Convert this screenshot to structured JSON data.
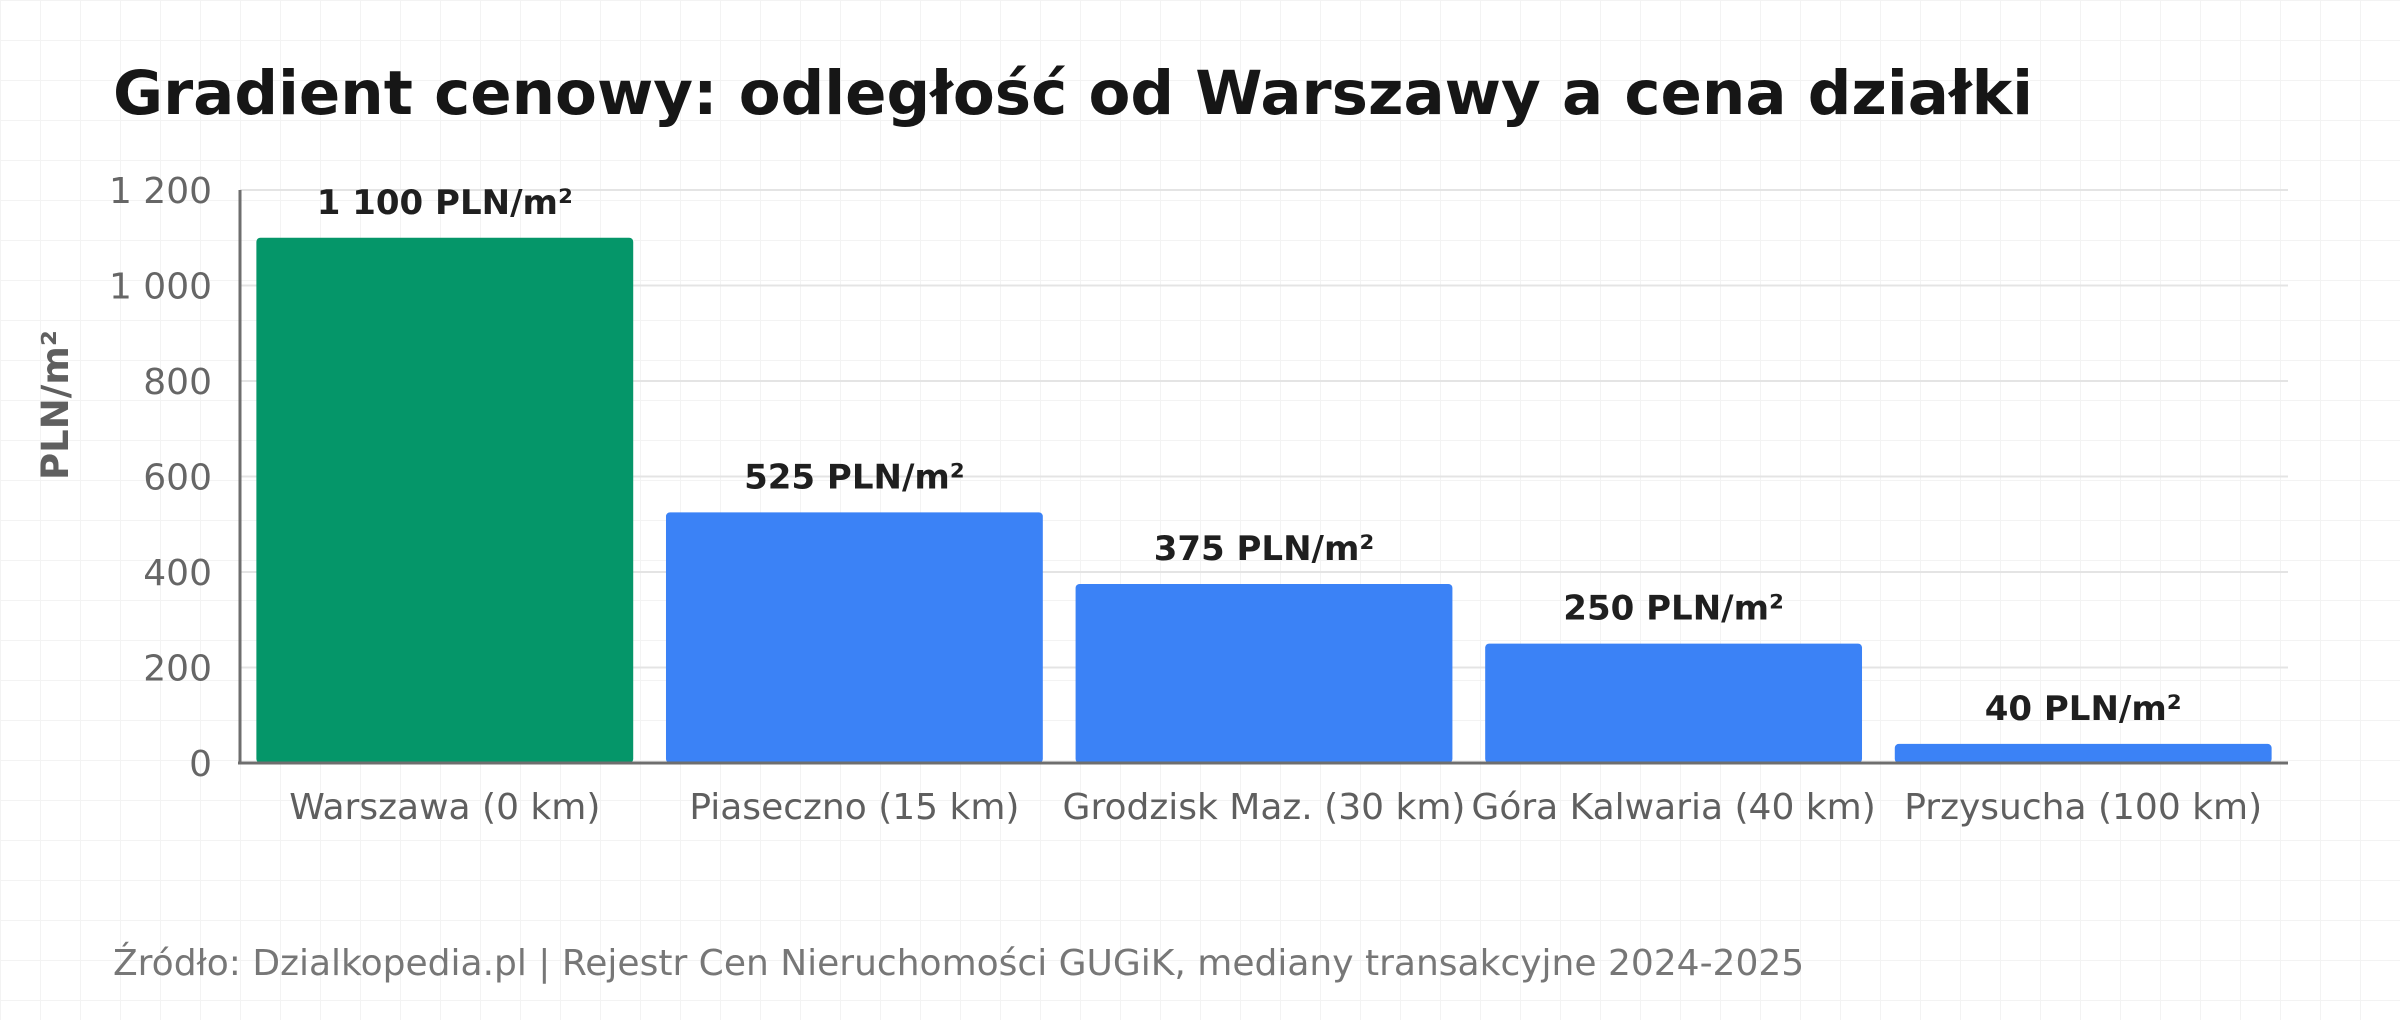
{
  "chart_data": {
    "type": "bar",
    "title": "Gradient cenowy: odległość od Warszawy a cena działki",
    "ylabel": "PLN/m²",
    "xlabel": "",
    "categories": [
      "Warszawa (0 km)",
      "Piaseczno (15 km)",
      "Grodzisk Maz. (30 km)",
      "Góra Kalwaria (40 km)",
      "Przysucha (100 km)"
    ],
    "values": [
      1100,
      525,
      375,
      250,
      40
    ],
    "data_labels": [
      "1 100 PLN/m²",
      "525 PLN/m²",
      "375 PLN/m²",
      "250 PLN/m²",
      "40 PLN/m²"
    ],
    "bar_colors": [
      "#059669",
      "#3b82f6",
      "#3b82f6",
      "#3b82f6",
      "#3b82f6"
    ],
    "ylim": [
      0,
      1200
    ],
    "yticks": [
      0,
      200,
      400,
      600,
      800,
      1000,
      1200
    ],
    "ytick_labels": [
      "0",
      "200",
      "400",
      "600",
      "800",
      "1 000",
      "1 200"
    ],
    "grid": true,
    "source": "Źródło: Dzialkopedia.pl | Rejestr Cen Nieruchomości GUGiK, mediany transakcyjne 2024-2025"
  }
}
